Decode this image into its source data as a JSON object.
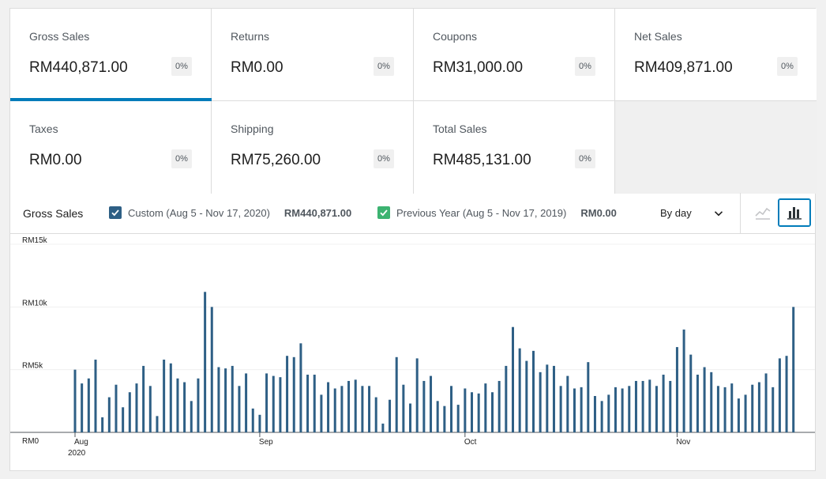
{
  "tiles": [
    {
      "label": "Gross Sales",
      "value": "RM440,871.00",
      "delta": "0%",
      "active": true
    },
    {
      "label": "Returns",
      "value": "RM0.00",
      "delta": "0%"
    },
    {
      "label": "Coupons",
      "value": "RM31,000.00",
      "delta": "0%"
    },
    {
      "label": "Net Sales",
      "value": "RM409,871.00",
      "delta": "0%"
    },
    {
      "label": "Taxes",
      "value": "RM0.00",
      "delta": "0%"
    },
    {
      "label": "Shipping",
      "value": "RM75,260.00",
      "delta": "0%"
    },
    {
      "label": "Total Sales",
      "value": "RM485,131.00",
      "delta": "0%"
    }
  ],
  "chart_header": {
    "title": "Gross Sales",
    "current": {
      "label": "Custom (Aug 5 - Nov 17, 2020)",
      "value": "RM440,871.00",
      "color": "#2e5f85"
    },
    "previous": {
      "label": "Previous Year (Aug 5 - Nov 17, 2019)",
      "value": "RM0.00",
      "color": "#3cb371"
    },
    "interval": "By day"
  },
  "colors": {
    "accent": "#007cba",
    "bar": "#2e5f85"
  },
  "chart_data": {
    "type": "bar",
    "y_ticks": [
      "RM15k",
      "RM10k",
      "RM5k",
      "RM0"
    ],
    "ylim": [
      0,
      15000
    ],
    "x_ticks": [
      {
        "label": "Aug",
        "sub": "2020",
        "index": 0
      },
      {
        "label": "Sep",
        "index": 27
      },
      {
        "label": "Oct",
        "index": 57
      },
      {
        "label": "Nov",
        "index": 88
      }
    ],
    "series": [
      {
        "name": "Custom (Aug 5 - Nov 17, 2020)",
        "values": [
          5000,
          3900,
          4300,
          5800,
          1200,
          2800,
          3800,
          2000,
          3200,
          3900,
          5300,
          3700,
          1300,
          5800,
          5500,
          4300,
          4000,
          2500,
          4300,
          11200,
          10000,
          5200,
          5100,
          5300,
          3700,
          4700,
          1900,
          1400,
          4700,
          4500,
          4400,
          6100,
          6000,
          7100,
          4600,
          4600,
          3000,
          4000,
          3500,
          3700,
          4100,
          4200,
          3700,
          3700,
          2800,
          700,
          2600,
          6000,
          3800,
          2300,
          5900,
          4100,
          4500,
          2500,
          2100,
          3700,
          2200,
          3500,
          3200,
          3100,
          3900,
          3200,
          4100,
          5300,
          8400,
          6700,
          5700,
          6500,
          4800,
          5400,
          5300,
          3700,
          4500,
          3500,
          3600,
          5600,
          2900,
          2500,
          3000,
          3600,
          3500,
          3700,
          4100,
          4100,
          4200,
          3700,
          4600,
          4100,
          6800,
          8200,
          6200,
          4600,
          5200,
          4800,
          3700,
          3600,
          3900,
          2700,
          3000,
          3800,
          4000,
          4700,
          3600,
          5900,
          6100,
          10000
        ]
      }
    ]
  }
}
